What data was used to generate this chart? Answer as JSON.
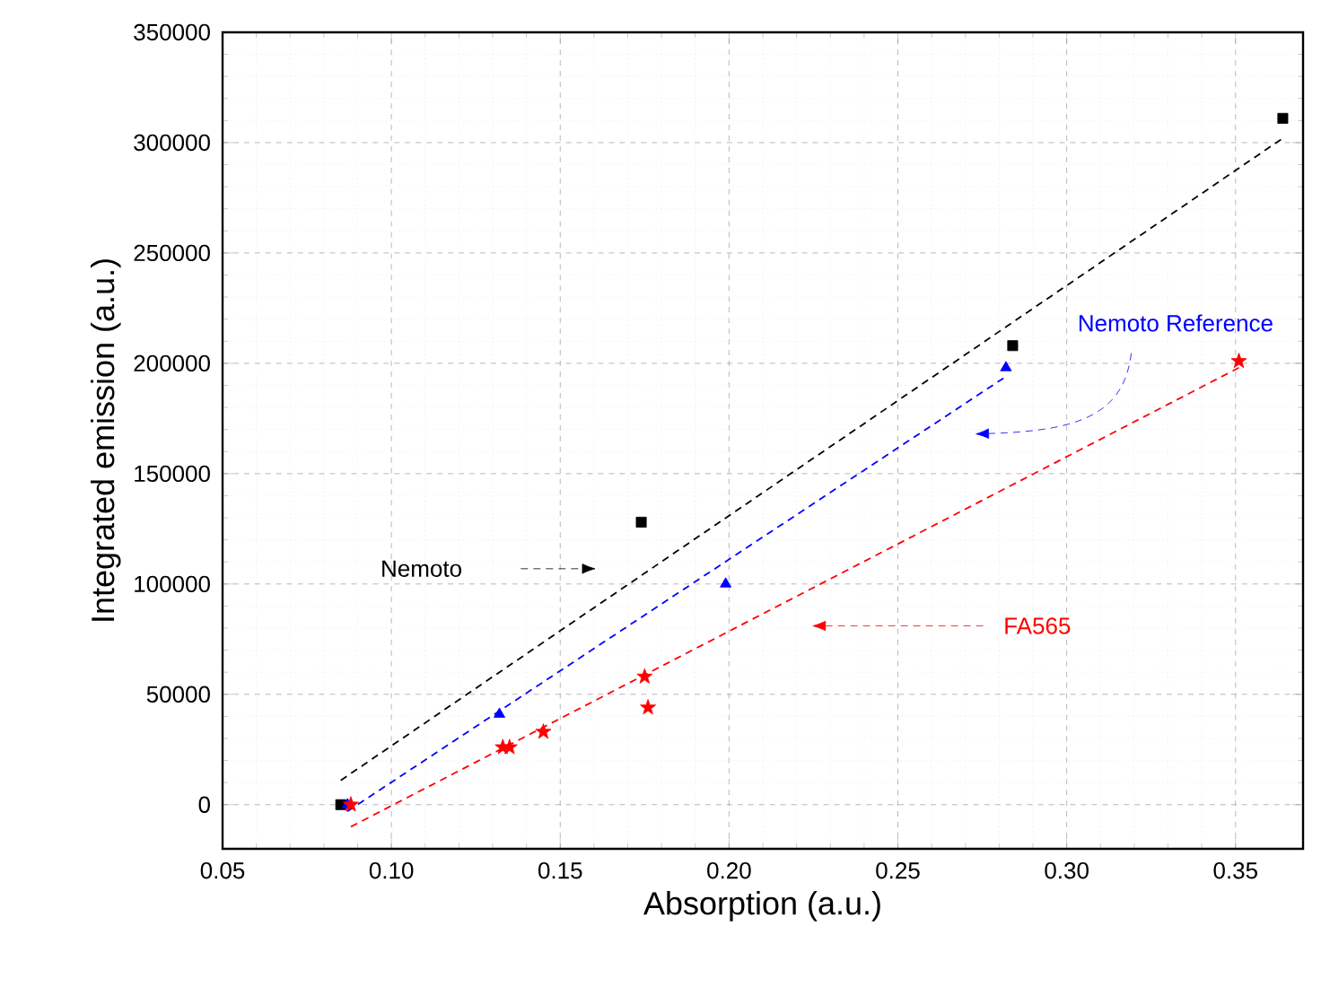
{
  "chart_data": {
    "type": "scatter",
    "xlabel": "Absorption (a.u.)",
    "ylabel": "Integrated emission (a.u.)",
    "xlim": [
      0.05,
      0.37
    ],
    "ylim": [
      -20000,
      350000
    ],
    "xticks": [
      {
        "value": 0.05,
        "label": "0.05"
      },
      {
        "value": 0.1,
        "label": "0.10"
      },
      {
        "value": 0.15,
        "label": "0.15"
      },
      {
        "value": 0.2,
        "label": "0.20"
      },
      {
        "value": 0.25,
        "label": "0.25"
      },
      {
        "value": 0.3,
        "label": "0.30"
      },
      {
        "value": 0.35,
        "label": "0.35"
      }
    ],
    "yticks": [
      0,
      50000,
      100000,
      150000,
      200000,
      250000,
      300000,
      350000
    ],
    "grid": true,
    "series": [
      {
        "type": "scatter",
        "color": "#000000",
        "marker": "square",
        "x": [
          0.085,
          0.174,
          0.284,
          0.364
        ],
        "values": [
          0,
          128000,
          208000,
          311000
        ]
      },
      {
        "type": "scatter",
        "color": "#0000ff",
        "marker": "triangle",
        "x": [
          0.087,
          0.132,
          0.199,
          0.282
        ],
        "values": [
          0,
          41000,
          100000,
          198000
        ]
      },
      {
        "type": "scatter",
        "color": "#ff0000",
        "marker": "star",
        "x": [
          0.088,
          0.133,
          0.135,
          0.145,
          0.175,
          0.176,
          0.351
        ],
        "values": [
          0,
          26000,
          26000,
          33000,
          58000,
          44000,
          201000
        ]
      },
      {
        "type": "line",
        "color": "#000000",
        "line_style": "dashed",
        "marker": "none",
        "x": [
          0.085,
          0.364
        ],
        "values": [
          11000,
          302000
        ]
      },
      {
        "type": "line",
        "color": "#0000ff",
        "line_style": "dashed",
        "marker": "none",
        "x": [
          0.087,
          0.282
        ],
        "values": [
          -3000,
          194000
        ]
      },
      {
        "type": "line",
        "color": "#ff0000",
        "line_style": "dashed",
        "marker": "none",
        "x": [
          0.088,
          0.351
        ],
        "values": [
          -10000,
          198000
        ]
      }
    ],
    "annotations": [
      "Nemoto",
      "Nemoto Reference",
      "FA565"
    ]
  }
}
